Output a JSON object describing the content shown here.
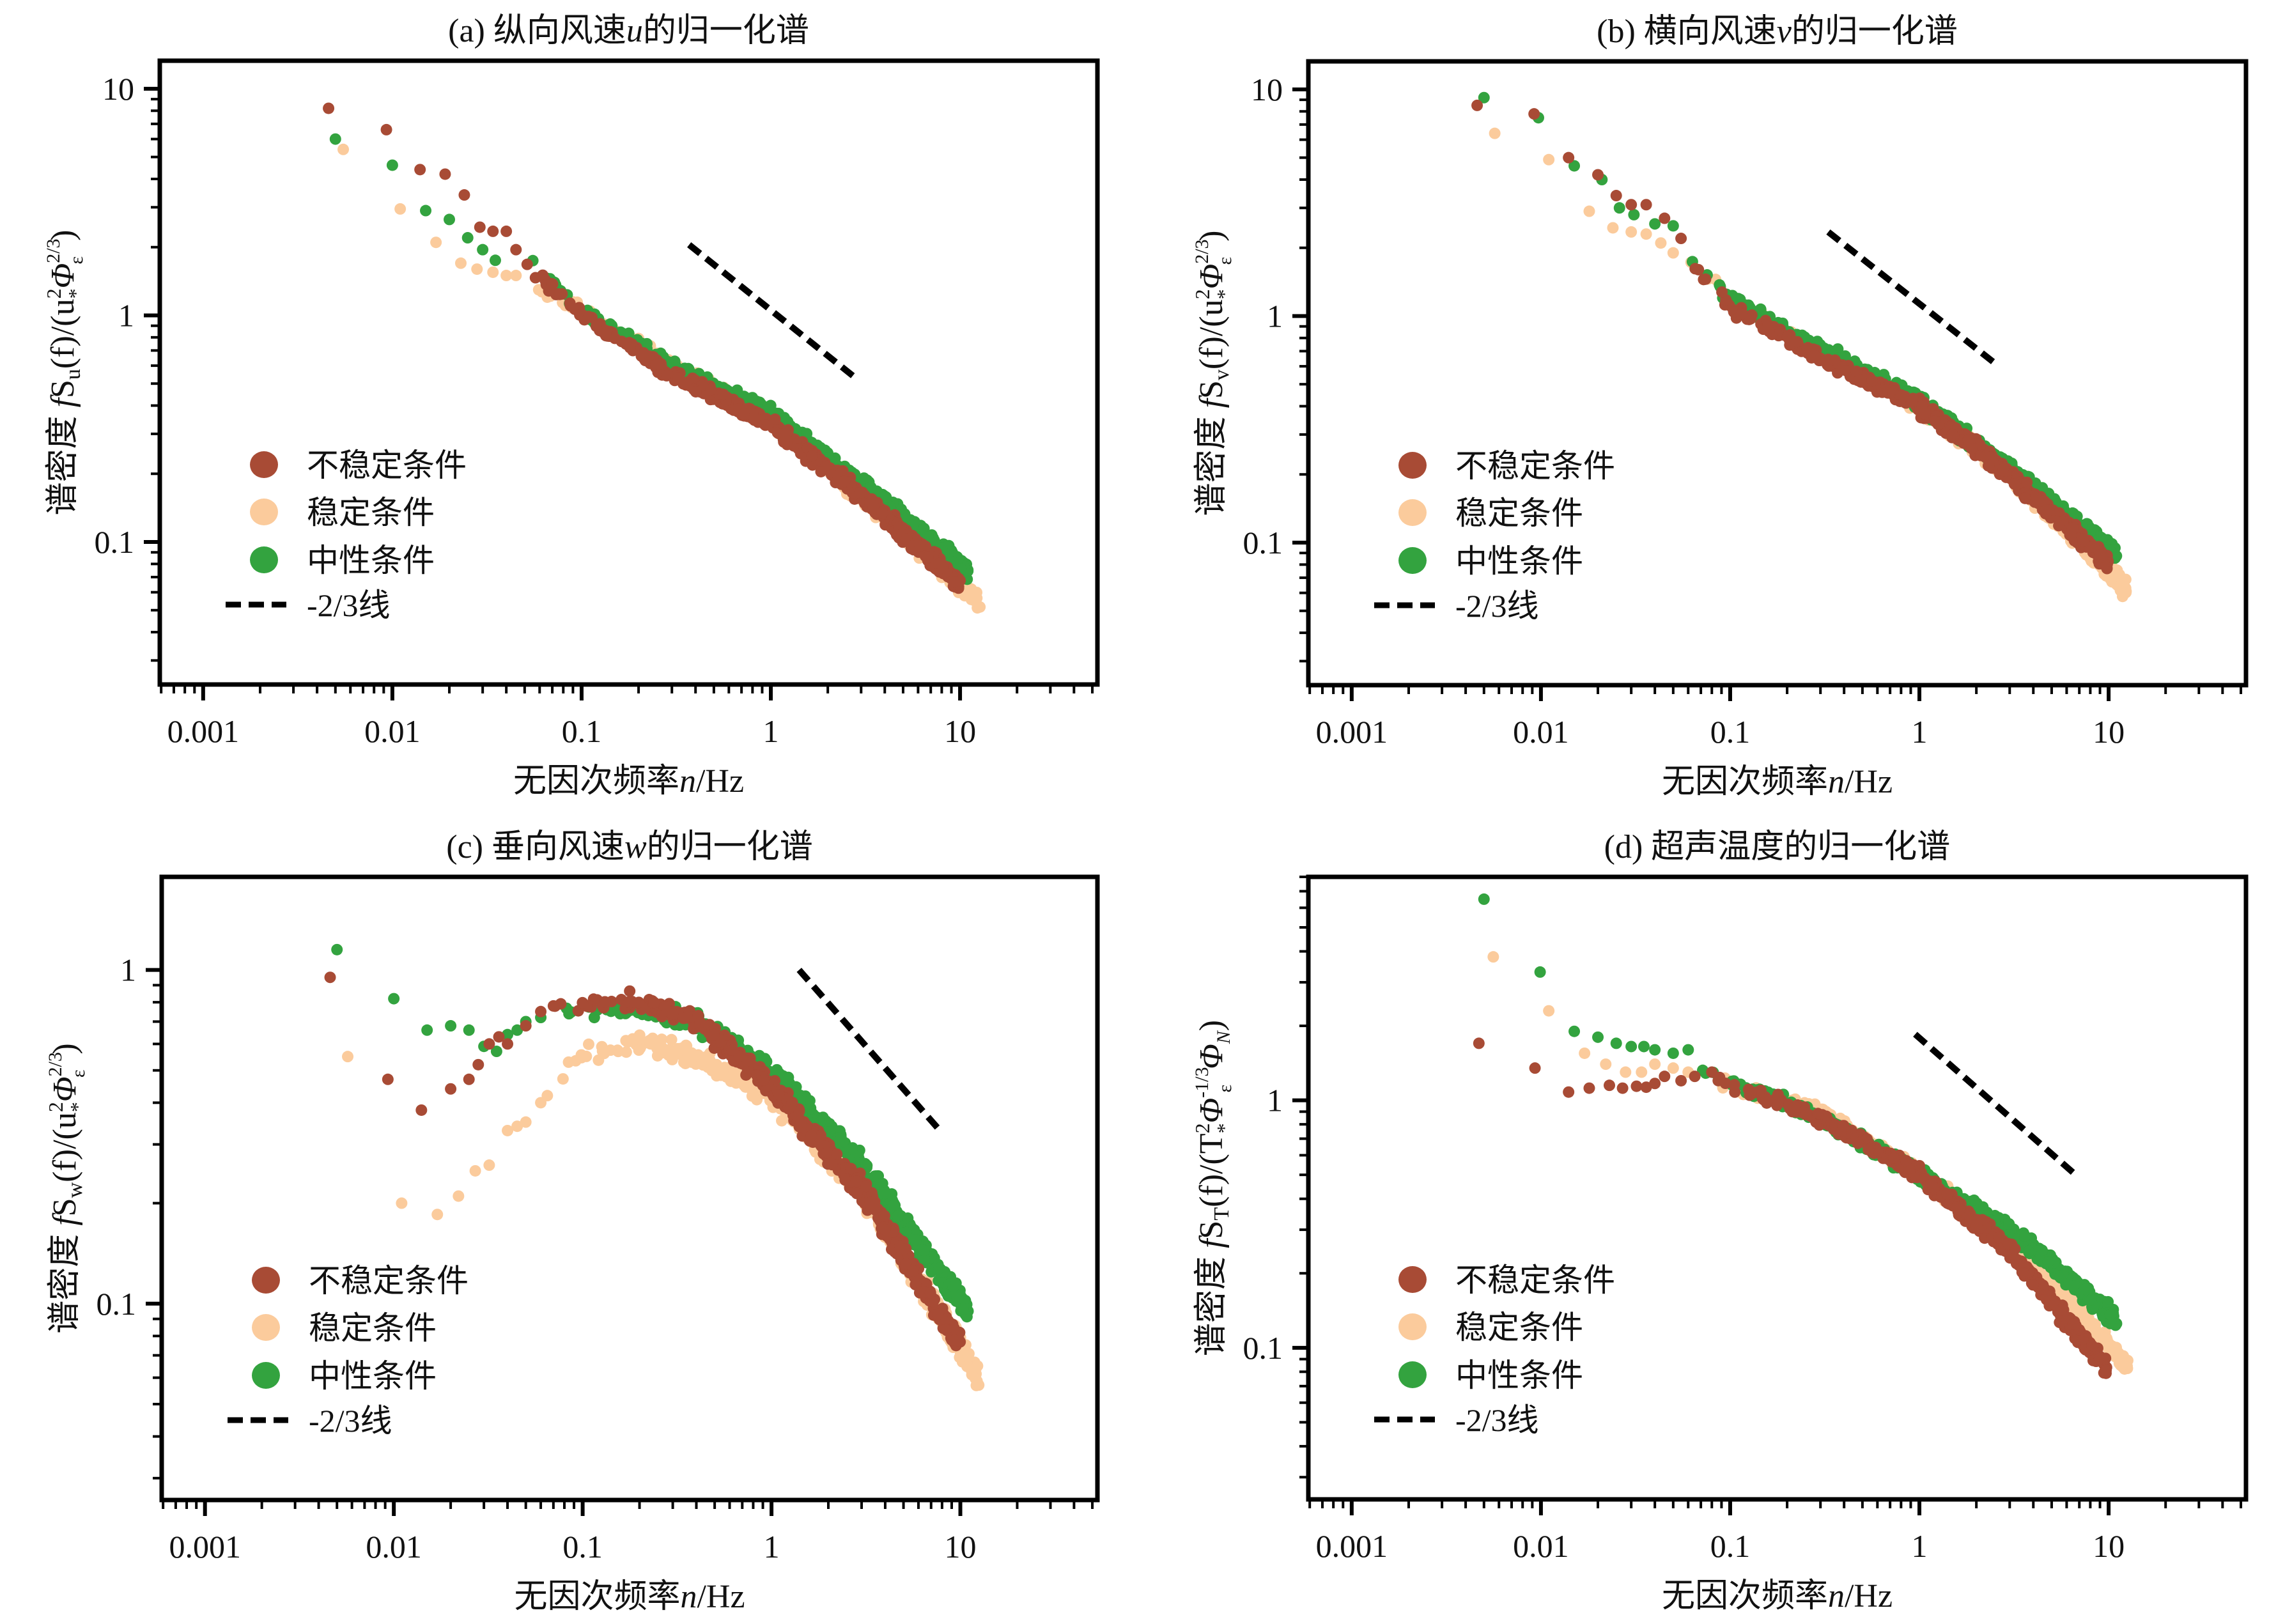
{
  "figure": {
    "colors": {
      "unstable": "#A84B35",
      "stable": "#FBCB9C",
      "neutral": "#33A33F",
      "ref_line": "#000000",
      "axis": "#000000"
    }
  },
  "chart_data": [
    {
      "id": "a",
      "type": "scatter",
      "title_prefix": "(a) 纵向风速",
      "title_var": "u",
      "title_suffix": "的归一化谱",
      "xlabel_text": "无因次频率",
      "xlabel_var": "n",
      "xlabel_unit": "/Hz",
      "ylabel_prefix": "谱密度 ",
      "ylabel_f": "f",
      "ylabel_S": "S",
      "ylabel_sub": "u",
      "ylabel_rest": "(f)/(u",
      "ylabel_tail_sup": "2",
      "ylabel_tail_sub": "*",
      "ylabel_phi": "Φ",
      "ylabel_phi_sup": "2/3",
      "ylabel_phi_sub": "ε",
      "ylabel_close": ")",
      "xscale": "log",
      "yscale": "log",
      "xlim": [
        0.00059,
        53.2
      ],
      "ylim": [
        0.0235,
        13.3
      ],
      "xticks": [
        0.001,
        0.01,
        0.1,
        1,
        10
      ],
      "xtick_labels": [
        "0.001",
        "0.01",
        "0.1",
        "1",
        "10"
      ],
      "yticks": [
        0.1,
        1,
        10
      ],
      "ytick_labels": [
        "0.1",
        "1",
        "10"
      ],
      "legend": [
        "不稳定条件",
        "稳定条件",
        "中性条件",
        "-2/3线"
      ],
      "legend_position": "lower-left",
      "reference_line": {
        "label": "-2/3线",
        "slope": -0.6667,
        "x": [
          0.37,
          2.8
        ],
        "y": [
          2.05,
          0.53
        ]
      },
      "series": [
        {
          "name": "不稳定条件",
          "key": "unstable",
          "points": [
            [
              0.0046,
              8.2
            ],
            [
              0.0093,
              6.6
            ],
            [
              0.014,
              4.4
            ],
            [
              0.019,
              4.2
            ],
            [
              0.024,
              3.4
            ],
            [
              0.029,
              2.45
            ],
            [
              0.034,
              2.35
            ],
            [
              0.04,
              2.35
            ],
            [
              0.045,
              1.95
            ]
          ],
          "band": {
            "x": [
              0.05,
              0.1,
              0.3,
              1,
              3,
              10
            ],
            "y": [
              1.7,
              1.0,
              0.55,
              0.33,
              0.16,
              0.065
            ]
          }
        },
        {
          "name": "稳定条件",
          "key": "stable",
          "points": [
            [
              0.0055,
              5.4
            ],
            [
              0.011,
              2.95
            ],
            [
              0.017,
              2.1
            ],
            [
              0.023,
              1.7
            ],
            [
              0.028,
              1.6
            ],
            [
              0.034,
              1.55
            ],
            [
              0.04,
              1.5
            ],
            [
              0.045,
              1.5
            ]
          ],
          "band": {
            "x": [
              0.05,
              0.1,
              0.3,
              1,
              3,
              12.5
            ],
            "y": [
              1.45,
              1.05,
              0.6,
              0.35,
              0.16,
              0.055
            ]
          }
        },
        {
          "name": "中性条件",
          "key": "neutral",
          "points": [
            [
              0.005,
              6.0
            ],
            [
              0.01,
              4.6
            ],
            [
              0.015,
              2.9
            ],
            [
              0.02,
              2.65
            ],
            [
              0.025,
              2.2
            ],
            [
              0.03,
              1.95
            ],
            [
              0.035,
              1.75
            ]
          ],
          "band": {
            "x": [
              0.05,
              0.1,
              0.3,
              1,
              3,
              11
            ],
            "y": [
              1.8,
              1.05,
              0.6,
              0.37,
              0.18,
              0.075
            ]
          }
        }
      ]
    },
    {
      "id": "b",
      "type": "scatter",
      "title_prefix": "(b) 横向风速",
      "title_var": "v",
      "title_suffix": "的归一化谱",
      "xlabel_text": "无因次频率",
      "xlabel_var": "n",
      "xlabel_unit": "/Hz",
      "ylabel_prefix": "谱密度 ",
      "ylabel_f": "f",
      "ylabel_S": "S",
      "ylabel_sub": "v",
      "ylabel_rest": "(f)/(u",
      "ylabel_tail_sup": "2",
      "ylabel_tail_sub": "*",
      "ylabel_phi": "Φ",
      "ylabel_phi_sup": "2/3",
      "ylabel_phi_sub": "ε",
      "ylabel_close": ")",
      "xscale": "log",
      "yscale": "log",
      "xlim": [
        0.00059,
        53.2
      ],
      "ylim": [
        0.0235,
        13.3
      ],
      "xticks": [
        0.001,
        0.01,
        0.1,
        1,
        10
      ],
      "xtick_labels": [
        "0.001",
        "0.01",
        "0.1",
        "1",
        "10"
      ],
      "yticks": [
        0.1,
        1,
        10
      ],
      "ytick_labels": [
        "0.1",
        "1",
        "10"
      ],
      "legend": [
        "不稳定条件",
        "稳定条件",
        "中性条件",
        "-2/3线"
      ],
      "legend_position": "lower-left",
      "reference_line": {
        "label": "-2/3线",
        "slope": -0.6667,
        "x": [
          0.33,
          2.5
        ],
        "y": [
          2.35,
          0.62
        ]
      },
      "series": [
        {
          "name": "不稳定条件",
          "key": "unstable",
          "points": [
            [
              0.0046,
              8.5
            ],
            [
              0.0092,
              7.8
            ],
            [
              0.014,
              5.0
            ],
            [
              0.02,
              4.2
            ],
            [
              0.025,
              3.4
            ],
            [
              0.03,
              3.1
            ],
            [
              0.036,
              3.1
            ],
            [
              0.045,
              2.7
            ],
            [
              0.055,
              2.2
            ]
          ],
          "band": {
            "x": [
              0.06,
              0.1,
              0.3,
              1,
              3,
              10
            ],
            "y": [
              1.8,
              1.1,
              0.65,
              0.4,
              0.2,
              0.08
            ]
          }
        },
        {
          "name": "稳定条件",
          "key": "stable",
          "points": [
            [
              0.0057,
              6.4
            ],
            [
              0.011,
              4.9
            ],
            [
              0.018,
              2.9
            ],
            [
              0.024,
              2.45
            ],
            [
              0.03,
              2.35
            ],
            [
              0.036,
              2.3
            ],
            [
              0.043,
              2.1
            ],
            [
              0.05,
              1.9
            ]
          ],
          "band": {
            "x": [
              0.06,
              0.1,
              0.3,
              1,
              3,
              12.5
            ],
            "y": [
              1.8,
              1.2,
              0.7,
              0.4,
              0.2,
              0.062
            ]
          }
        },
        {
          "name": "中性条件",
          "key": "neutral",
          "points": [
            [
              0.005,
              9.2
            ],
            [
              0.0097,
              7.5
            ],
            [
              0.015,
              4.6
            ],
            [
              0.021,
              4.0
            ],
            [
              0.026,
              3.0
            ],
            [
              0.031,
              2.8
            ],
            [
              0.04,
              2.55
            ],
            [
              0.05,
              2.5
            ]
          ],
          "band": {
            "x": [
              0.06,
              0.1,
              0.3,
              1,
              3,
              11
            ],
            "y": [
              1.85,
              1.2,
              0.72,
              0.42,
              0.21,
              0.09
            ]
          }
        }
      ]
    },
    {
      "id": "c",
      "type": "scatter",
      "title_prefix": "(c) 垂向风速",
      "title_var": "w",
      "title_suffix": "的归一化谱",
      "xlabel_text": "无因次频率",
      "xlabel_var": "n",
      "xlabel_unit": "/Hz",
      "ylabel_prefix": "谱密度 ",
      "ylabel_f": "f",
      "ylabel_S": "S",
      "ylabel_sub": "w",
      "ylabel_rest": "(f)/(u",
      "ylabel_tail_sup": "2",
      "ylabel_tail_sub": "*",
      "ylabel_phi": "Φ",
      "ylabel_phi_sup": "2/3",
      "ylabel_phi_sub": "ε",
      "ylabel_close": ")",
      "xscale": "log",
      "yscale": "log",
      "xlim": [
        0.00059,
        53.2
      ],
      "ylim": [
        0.0258,
        1.9
      ],
      "xticks": [
        0.001,
        0.01,
        0.1,
        1,
        10
      ],
      "xtick_labels": [
        "0.001",
        "0.01",
        "0.1",
        "1",
        "10"
      ],
      "yticks": [
        0.1,
        1
      ],
      "ytick_labels": [
        "0.1",
        "1"
      ],
      "legend": [
        "不稳定条件",
        "稳定条件",
        "中性条件",
        "-2/3线"
      ],
      "legend_position": "lower-left",
      "reference_line": {
        "label": "-2/3线",
        "slope": -0.6667,
        "x": [
          1.4,
          7.8
        ],
        "y": [
          1.0,
          0.33
        ]
      },
      "series": [
        {
          "name": "不稳定条件",
          "key": "unstable",
          "points": [
            [
              0.0046,
              0.95
            ],
            [
              0.0093,
              0.47
            ],
            [
              0.014,
              0.38
            ],
            [
              0.02,
              0.44
            ],
            [
              0.025,
              0.47
            ],
            [
              0.028,
              0.52
            ],
            [
              0.032,
              0.6
            ],
            [
              0.036,
              0.63
            ],
            [
              0.04,
              0.6
            ],
            [
              0.05,
              0.68
            ],
            [
              0.06,
              0.75
            ],
            [
              0.07,
              0.78
            ]
          ],
          "band": {
            "x": [
              0.07,
              0.1,
              0.2,
              0.4,
              1,
              3,
              10
            ],
            "y": [
              0.77,
              0.8,
              0.8,
              0.7,
              0.45,
              0.22,
              0.075
            ]
          }
        },
        {
          "name": "稳定条件",
          "key": "stable",
          "points": [
            [
              0.0057,
              0.55
            ],
            [
              0.011,
              0.2
            ],
            [
              0.017,
              0.185
            ],
            [
              0.022,
              0.21
            ],
            [
              0.027,
              0.25
            ],
            [
              0.032,
              0.26
            ],
            [
              0.04,
              0.33
            ],
            [
              0.045,
              0.34
            ],
            [
              0.05,
              0.35
            ],
            [
              0.06,
              0.4
            ],
            [
              0.065,
              0.42
            ]
          ],
          "band": {
            "x": [
              0.07,
              0.1,
              0.2,
              0.4,
              1,
              3,
              12.5
            ],
            "y": [
              0.47,
              0.55,
              0.6,
              0.55,
              0.42,
              0.22,
              0.06
            ]
          }
        },
        {
          "name": "中性条件",
          "key": "neutral",
          "points": [
            [
              0.005,
              1.15
            ],
            [
              0.01,
              0.82
            ],
            [
              0.015,
              0.66
            ],
            [
              0.02,
              0.68
            ],
            [
              0.025,
              0.66
            ],
            [
              0.03,
              0.59
            ],
            [
              0.035,
              0.57
            ],
            [
              0.04,
              0.64
            ],
            [
              0.045,
              0.66
            ],
            [
              0.05,
              0.7
            ],
            [
              0.06,
              0.72
            ]
          ],
          "band": {
            "x": [
              0.07,
              0.1,
              0.2,
              0.4,
              1,
              3,
              11
            ],
            "y": [
              0.74,
              0.76,
              0.76,
              0.7,
              0.5,
              0.26,
              0.095
            ]
          }
        }
      ]
    },
    {
      "id": "d",
      "type": "scatter",
      "title_prefix": "(d) 超声温度的归一化谱",
      "title_var": "",
      "title_suffix": "",
      "xlabel_text": "无因次频率",
      "xlabel_var": "n",
      "xlabel_unit": "/Hz",
      "ylabel_prefix": "谱密度 ",
      "ylabel_f": "f",
      "ylabel_S": "S",
      "ylabel_sub": "T",
      "ylabel_rest": "(f)/(T",
      "ylabel_tail_sup": "2",
      "ylabel_tail_sub": "*",
      "ylabel_phi": "Φ",
      "ylabel_phi_sup": "-1/3",
      "ylabel_phi_sub": "ε",
      "ylabel_extra": "Φ",
      "ylabel_extra_sub": "N",
      "ylabel_close": ")",
      "xscale": "log",
      "yscale": "log",
      "xlim": [
        0.00059,
        53.2
      ],
      "ylim": [
        0.0244,
        8.0
      ],
      "xticks": [
        0.001,
        0.01,
        0.1,
        1,
        10
      ],
      "xtick_labels": [
        "0.001",
        "0.01",
        "0.1",
        "1",
        "10"
      ],
      "yticks": [
        0.1,
        1
      ],
      "ytick_labels": [
        "0.1",
        "1"
      ],
      "legend": [
        "不稳定条件",
        "稳定条件",
        "中性条件",
        "-2/3线"
      ],
      "legend_position": "lower-left",
      "reference_line": {
        "label": "-2/3线",
        "slope": -0.6667,
        "x": [
          0.95,
          6.5
        ],
        "y": [
          1.85,
          0.51
        ]
      },
      "series": [
        {
          "name": "不稳定条件",
          "key": "unstable",
          "points": [
            [
              0.0047,
              1.7
            ],
            [
              0.0093,
              1.35
            ],
            [
              0.014,
              1.08
            ],
            [
              0.018,
              1.12
            ],
            [
              0.023,
              1.15
            ],
            [
              0.027,
              1.12
            ],
            [
              0.032,
              1.14
            ],
            [
              0.036,
              1.13
            ],
            [
              0.04,
              1.17
            ],
            [
              0.045,
              1.25
            ],
            [
              0.055,
              1.2
            ],
            [
              0.065,
              1.25
            ],
            [
              0.08,
              1.3
            ]
          ],
          "band": {
            "x": [
              0.08,
              0.1,
              0.3,
              1,
              3,
              10
            ],
            "y": [
              1.25,
              1.15,
              0.85,
              0.5,
              0.25,
              0.08
            ]
          }
        },
        {
          "name": "稳定条件",
          "key": "stable",
          "points": [
            [
              0.0056,
              3.8
            ],
            [
              0.011,
              2.3
            ],
            [
              0.017,
              1.55
            ],
            [
              0.022,
              1.4
            ],
            [
              0.028,
              1.3
            ],
            [
              0.034,
              1.3
            ],
            [
              0.04,
              1.4
            ],
            [
              0.05,
              1.35
            ],
            [
              0.06,
              1.3
            ]
          ],
          "band": {
            "x": [
              0.08,
              0.1,
              0.3,
              1,
              3,
              12.5
            ],
            "y": [
              1.25,
              1.15,
              0.9,
              0.5,
              0.27,
              0.085
            ]
          }
        },
        {
          "name": "中性条件",
          "key": "neutral",
          "points": [
            [
              0.005,
              6.5
            ],
            [
              0.0099,
              3.3
            ],
            [
              0.015,
              1.9
            ],
            [
              0.02,
              1.8
            ],
            [
              0.025,
              1.7
            ],
            [
              0.03,
              1.65
            ],
            [
              0.035,
              1.65
            ],
            [
              0.04,
              1.6
            ],
            [
              0.05,
              1.55
            ],
            [
              0.06,
              1.6
            ]
          ],
          "band": {
            "x": [
              0.07,
              0.1,
              0.3,
              1,
              3,
              11
            ],
            "y": [
              1.35,
              1.2,
              0.85,
              0.5,
              0.3,
              0.13
            ]
          }
        }
      ]
    }
  ]
}
